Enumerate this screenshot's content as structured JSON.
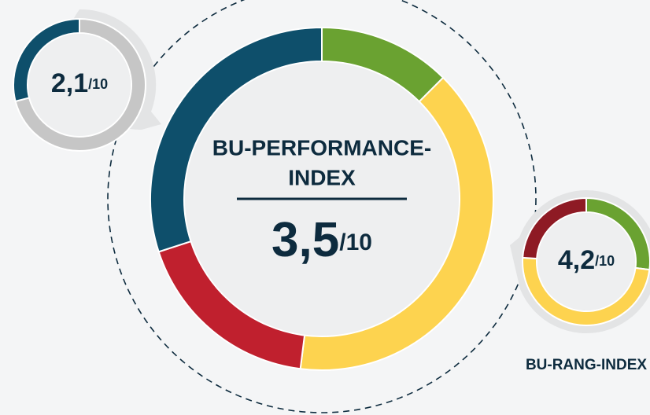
{
  "chart_data": [
    {
      "type": "donut",
      "title_lines": [
        "BU-PERFORMANCE-",
        "INDEX"
      ],
      "score": "3,5",
      "score_suffix": "/10",
      "values": [
        12.5,
        39.5,
        18,
        30
      ],
      "colors": [
        "#6aa231",
        "#fdd34f",
        "#c0202e",
        "#0e4f6b"
      ]
    },
    {
      "type": "donut",
      "score": "2,1",
      "score_suffix": "/10",
      "values": [
        71,
        29
      ],
      "colors": [
        "#c6c6c6",
        "#0e4f6b"
      ]
    },
    {
      "type": "donut",
      "title": "BU-RANG-INDEX",
      "score": "4,2",
      "score_suffix": "/10",
      "values": [
        27,
        49,
        24
      ],
      "colors": [
        "#6aa231",
        "#fdd34f",
        "#8e1a24"
      ]
    }
  ]
}
